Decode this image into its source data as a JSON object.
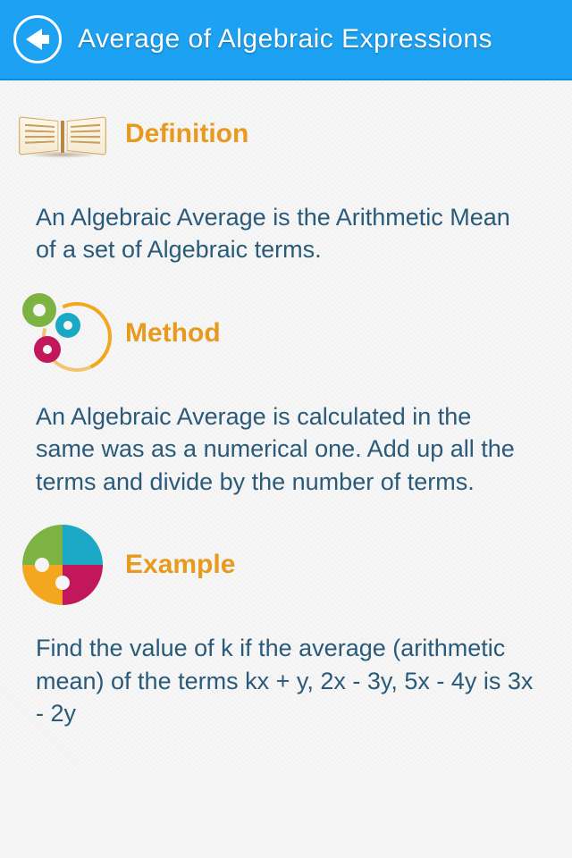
{
  "header": {
    "title": "Average of Algebraic Expressions",
    "bg_color": "#1da1f2"
  },
  "sections": {
    "definition": {
      "title": "Definition",
      "text": "An Algebraic Average is the Arithmetic Mean of a set of Algebraic terms."
    },
    "method": {
      "title": "Method",
      "text": "An Algebraic Average is calculated in the same was as a numerical one. Add up all the terms and divide by the number of terms."
    },
    "example": {
      "title": "Example",
      "text": "Find the value of k if the average (arithmetic mean) of the terms kx + y, 2x - 3y, 5x - 4y is 3x - 2y"
    }
  },
  "colors": {
    "section_title": "#e89a1f",
    "body_text": "#2a5a7a"
  }
}
